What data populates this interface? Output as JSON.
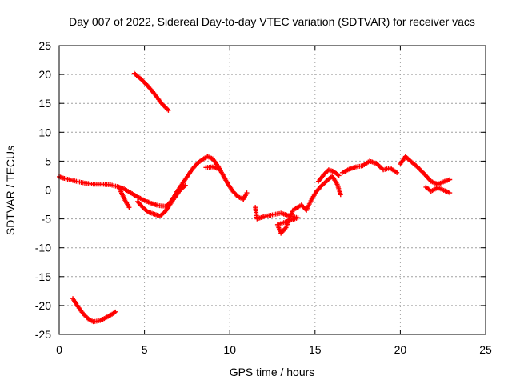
{
  "chart_data": {
    "type": "scatter",
    "title": "Day 007 of 2022, Sidereal Day-to-day VTEC variation (SDTVAR) for receiver vacs",
    "xlabel": "GPS time / hours",
    "ylabel": "SDTVAR / TECUs",
    "xlim": [
      0,
      25
    ],
    "ylim": [
      -25,
      25
    ],
    "xticks": [
      0,
      5,
      10,
      15,
      20,
      25
    ],
    "yticks": [
      -25,
      -20,
      -15,
      -10,
      -5,
      0,
      5,
      10,
      15,
      20,
      25
    ],
    "grid": true,
    "marker": "+",
    "color": "#ff0000",
    "series": [
      {
        "name": "arc-main-1",
        "points": [
          [
            0.0,
            2.3
          ],
          [
            0.3,
            2.0
          ],
          [
            0.6,
            1.8
          ],
          [
            1.0,
            1.5
          ],
          [
            1.5,
            1.2
          ],
          [
            2.0,
            1.0
          ],
          [
            2.5,
            1.0
          ],
          [
            3.0,
            0.9
          ],
          [
            3.4,
            0.6
          ],
          [
            3.8,
            0.2
          ],
          [
            4.2,
            -0.5
          ],
          [
            4.6,
            -1.2
          ],
          [
            5.0,
            -1.8
          ],
          [
            5.4,
            -2.3
          ],
          [
            5.8,
            -2.7
          ],
          [
            6.2,
            -2.8
          ]
        ]
      },
      {
        "name": "arc-main-1b",
        "points": [
          [
            3.5,
            0.5
          ],
          [
            3.7,
            -0.8
          ],
          [
            3.9,
            -2.0
          ],
          [
            4.1,
            -3.0
          ]
        ]
      },
      {
        "name": "arc-main-1c",
        "points": [
          [
            4.6,
            -2.0
          ],
          [
            4.9,
            -3.0
          ],
          [
            5.2,
            -3.8
          ],
          [
            5.6,
            -4.2
          ],
          [
            5.9,
            -4.5
          ],
          [
            6.2,
            -3.8
          ],
          [
            6.5,
            -2.5
          ],
          [
            6.8,
            -1.2
          ],
          [
            7.1,
            0.0
          ],
          [
            7.4,
            0.8
          ]
        ]
      },
      {
        "name": "arc-main-2",
        "points": [
          [
            6.3,
            -2.8
          ],
          [
            6.6,
            -1.8
          ],
          [
            6.9,
            -0.3
          ],
          [
            7.2,
            1.0
          ],
          [
            7.5,
            2.3
          ],
          [
            7.8,
            3.6
          ],
          [
            8.1,
            4.6
          ],
          [
            8.4,
            5.3
          ],
          [
            8.7,
            5.8
          ],
          [
            9.0,
            5.4
          ],
          [
            9.3,
            4.2
          ],
          [
            9.6,
            2.6
          ],
          [
            9.9,
            1.0
          ],
          [
            10.2,
            -0.3
          ],
          [
            10.5,
            -1.2
          ],
          [
            10.8,
            -1.6
          ],
          [
            11.0,
            -0.5
          ]
        ]
      },
      {
        "name": "arc-main-2b",
        "points": [
          [
            8.6,
            3.9
          ],
          [
            9.0,
            4.0
          ],
          [
            9.4,
            3.6
          ]
        ]
      },
      {
        "name": "arc-main-3",
        "points": [
          [
            11.5,
            -3.0
          ],
          [
            11.6,
            -5.0
          ],
          [
            12.0,
            -4.6
          ],
          [
            12.5,
            -4.3
          ],
          [
            13.0,
            -4.0
          ],
          [
            13.5,
            -4.5
          ],
          [
            14.0,
            -4.8
          ],
          [
            12.8,
            -6.0
          ],
          [
            13.0,
            -7.5
          ],
          [
            13.3,
            -6.5
          ],
          [
            13.7,
            -3.5
          ],
          [
            14.2,
            -2.6
          ],
          [
            14.5,
            -3.5
          ],
          [
            14.8,
            -1.6
          ],
          [
            15.1,
            -0.2
          ],
          [
            15.4,
            0.8
          ],
          [
            15.7,
            1.6
          ],
          [
            16.0,
            2.4
          ],
          [
            16.3,
            1.0
          ],
          [
            16.5,
            -0.8
          ]
        ]
      },
      {
        "name": "arc-main-3b",
        "points": [
          [
            15.2,
            1.5
          ],
          [
            15.5,
            2.6
          ],
          [
            15.8,
            3.5
          ],
          [
            16.1,
            3.2
          ],
          [
            16.4,
            2.5
          ]
        ]
      },
      {
        "name": "arc-main-4",
        "points": [
          [
            16.6,
            3.0
          ],
          [
            17.0,
            3.6
          ],
          [
            17.4,
            4.0
          ],
          [
            17.8,
            4.2
          ],
          [
            18.2,
            5.0
          ],
          [
            18.6,
            4.6
          ],
          [
            19.0,
            3.5
          ],
          [
            19.4,
            3.8
          ],
          [
            19.8,
            3.0
          ]
        ]
      },
      {
        "name": "arc-main-5",
        "points": [
          [
            20.0,
            4.5
          ],
          [
            20.3,
            5.8
          ],
          [
            20.6,
            5.0
          ],
          [
            21.0,
            4.0
          ],
          [
            21.4,
            2.8
          ],
          [
            21.8,
            1.5
          ],
          [
            22.2,
            1.0
          ],
          [
            22.6,
            1.5
          ],
          [
            22.9,
            1.8
          ]
        ]
      },
      {
        "name": "arc-main-5b",
        "points": [
          [
            21.5,
            0.5
          ],
          [
            21.8,
            -0.2
          ],
          [
            22.2,
            0.4
          ],
          [
            22.9,
            -0.5
          ]
        ]
      },
      {
        "name": "arc-high",
        "points": [
          [
            4.4,
            20.2
          ],
          [
            4.8,
            19.2
          ],
          [
            5.2,
            18.0
          ],
          [
            5.6,
            16.6
          ],
          [
            6.0,
            15.0
          ],
          [
            6.4,
            13.8
          ]
        ]
      },
      {
        "name": "arc-low",
        "points": [
          [
            0.8,
            -18.8
          ],
          [
            1.1,
            -20.2
          ],
          [
            1.4,
            -21.4
          ],
          [
            1.7,
            -22.3
          ],
          [
            2.0,
            -22.8
          ],
          [
            2.4,
            -22.6
          ],
          [
            2.8,
            -22.0
          ],
          [
            3.1,
            -21.5
          ],
          [
            3.3,
            -21.1
          ]
        ]
      }
    ]
  }
}
